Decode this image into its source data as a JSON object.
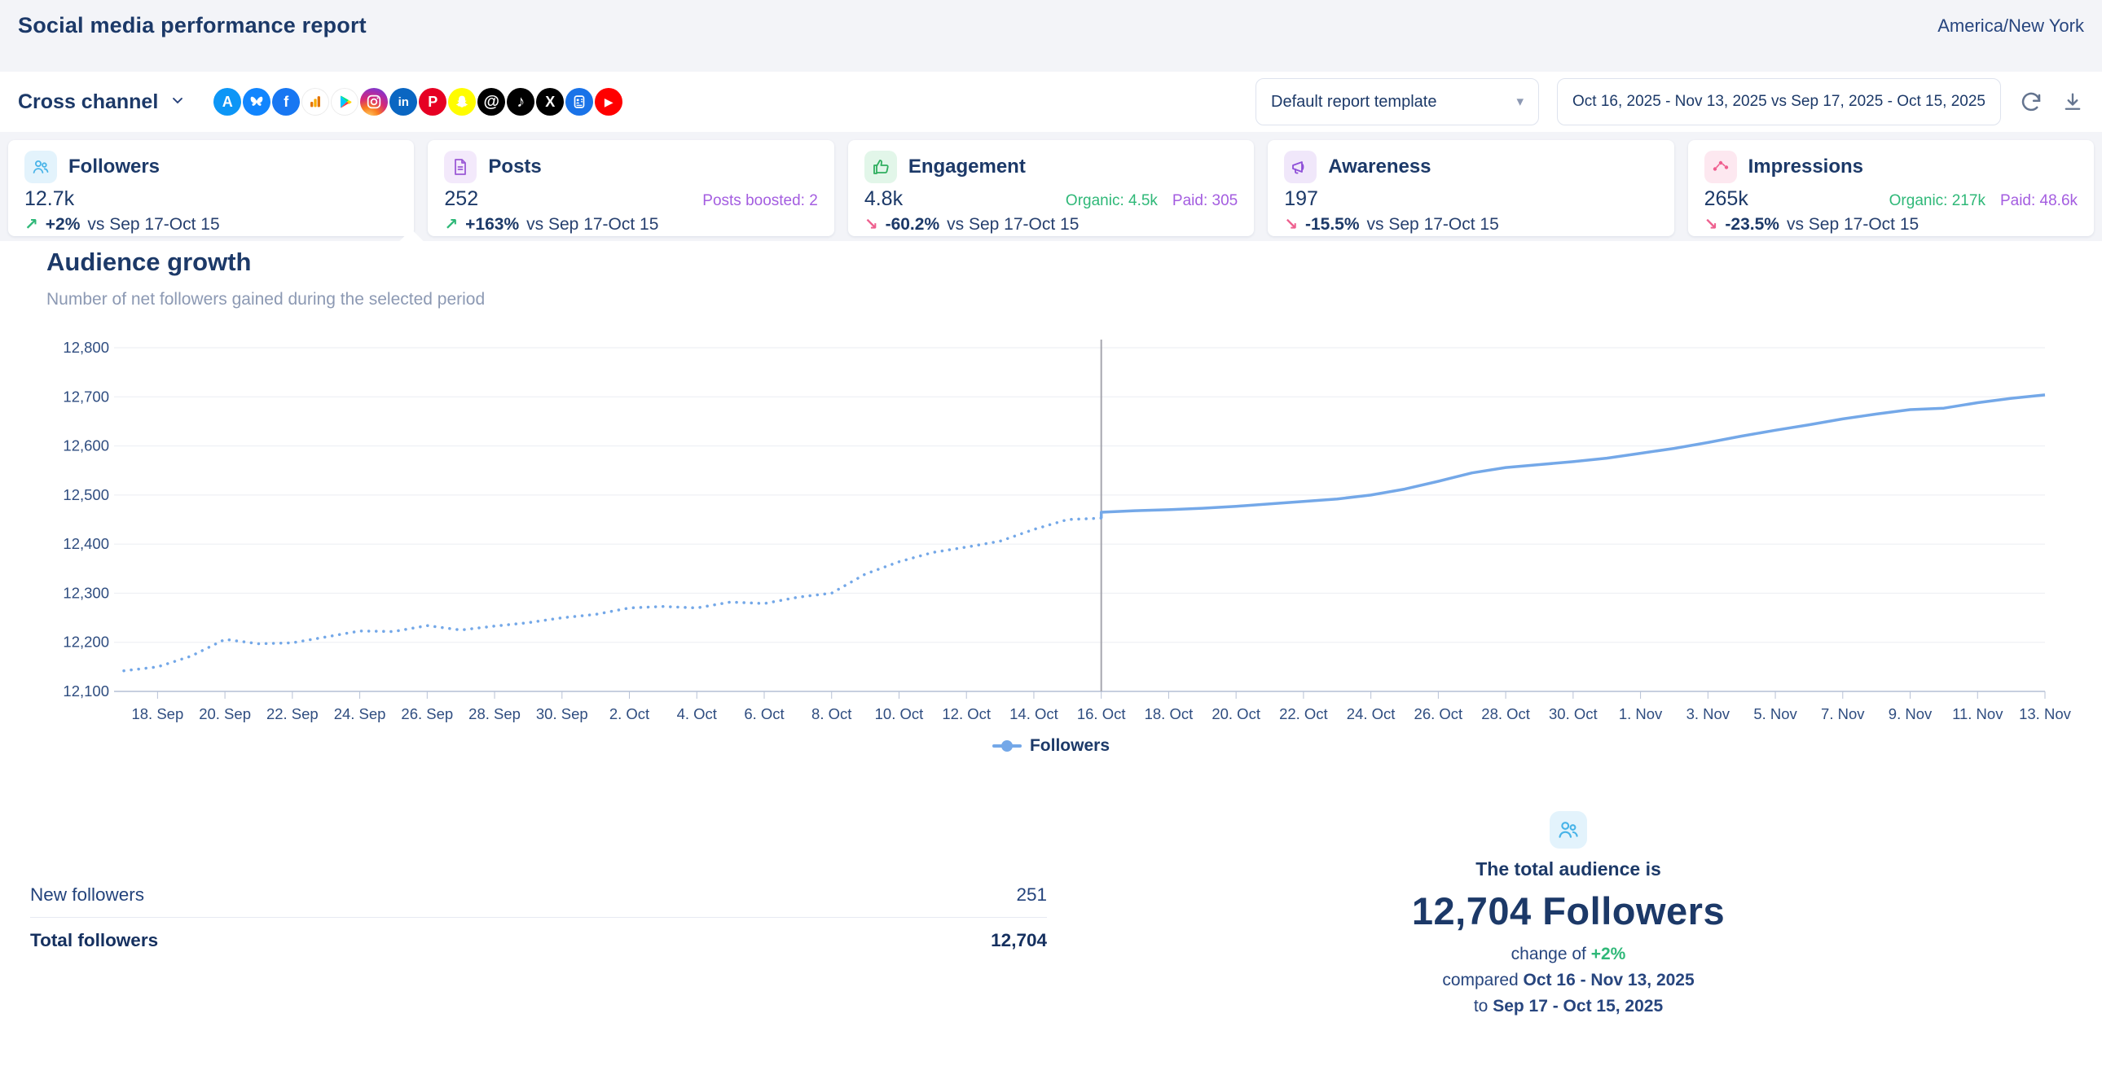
{
  "header": {
    "title": "Social media performance report",
    "timezone": "America/New York"
  },
  "toolbar": {
    "channel_label": "Cross channel",
    "template_selector": {
      "value": "Default report template"
    },
    "date_range": {
      "label": "Oct 16, 2025 - Nov 13, 2025 vs Sep 17, 2025 - Oct 15, 2025"
    },
    "channels": [
      {
        "name": "app-store",
        "bg": "#0d96f6",
        "fg": "#ffffff",
        "glyph": "A"
      },
      {
        "name": "bluesky",
        "bg": "#1185fe",
        "fg": "#ffffff",
        "glyph": "svg"
      },
      {
        "name": "facebook",
        "bg": "#1877f2",
        "fg": "#ffffff",
        "glyph": "f"
      },
      {
        "name": "google-analytics",
        "bg": "#ffffff",
        "fg": "#e37400",
        "glyph": "svg"
      },
      {
        "name": "google-play",
        "bg": "#ffffff",
        "fg": "#00c4ff",
        "glyph": "svg"
      },
      {
        "name": "instagram",
        "bg": "gradient",
        "fg": "#ffffff",
        "glyph": "svg"
      },
      {
        "name": "linkedin",
        "bg": "#0a66c2",
        "fg": "#ffffff",
        "glyph": "in"
      },
      {
        "name": "pinterest",
        "bg": "#e60023",
        "fg": "#ffffff",
        "glyph": "P"
      },
      {
        "name": "snapchat",
        "bg": "#fffc00",
        "fg": "#ffffff",
        "glyph": "svg"
      },
      {
        "name": "threads",
        "bg": "#000000",
        "fg": "#ffffff",
        "glyph": "@"
      },
      {
        "name": "tiktok",
        "bg": "#010101",
        "fg": "#ffffff",
        "glyph": "♪"
      },
      {
        "name": "x",
        "bg": "#000000",
        "fg": "#ffffff",
        "glyph": "X"
      },
      {
        "name": "google-business",
        "bg": "#1a73e8",
        "fg": "#ffffff",
        "glyph": "svg"
      },
      {
        "name": "youtube",
        "bg": "#ff0000",
        "fg": "#ffffff",
        "glyph": "▶"
      }
    ]
  },
  "kpis": [
    {
      "id": "followers",
      "title": "Followers",
      "value": "12.7k",
      "icon_bg": "#e3f3fc",
      "icon_color": "#49b4e8",
      "extras": [],
      "trend": {
        "direction": "up",
        "value": "+2%",
        "vs": "vs Sep 17-Oct 15"
      }
    },
    {
      "id": "posts",
      "title": "Posts",
      "value": "252",
      "icon_bg": "#f3e9fb",
      "icon_color": "#9b59d6",
      "extras": [
        {
          "label": "Posts boosted: 2",
          "color": "#a45de0"
        }
      ],
      "trend": {
        "direction": "up",
        "value": "+163%",
        "vs": "vs Sep 17-Oct 15"
      }
    },
    {
      "id": "engagement",
      "title": "Engagement",
      "value": "4.8k",
      "icon_bg": "#e2f6e9",
      "icon_color": "#2fae5f",
      "extras": [
        {
          "label": "Organic: 4.5k",
          "color": "#2fb878"
        },
        {
          "label": "Paid: 305",
          "color": "#a45de0"
        }
      ],
      "trend": {
        "direction": "down",
        "value": "-60.2%",
        "vs": "vs Sep 17-Oct 15"
      }
    },
    {
      "id": "awareness",
      "title": "Awareness",
      "value": "197",
      "icon_bg": "#f0e7fa",
      "icon_color": "#8e4fd8",
      "extras": [],
      "trend": {
        "direction": "down",
        "value": "-15.5%",
        "vs": "vs Sep 17-Oct 15"
      }
    },
    {
      "id": "impressions",
      "title": "Impressions",
      "value": "265k",
      "icon_bg": "#fde8f0",
      "icon_color": "#ef5d8e",
      "extras": [
        {
          "label": "Organic: 217k",
          "color": "#2fb878"
        },
        {
          "label": "Paid: 48.6k",
          "color": "#a45de0"
        }
      ],
      "trend": {
        "direction": "down",
        "value": "-23.5%",
        "vs": "vs Sep 17-Oct 15"
      }
    }
  ],
  "section": {
    "title": "Audience growth",
    "subtitle": "Number of net followers gained during the selected period"
  },
  "chart_data": {
    "type": "line",
    "title": "Audience growth",
    "xlabel": "",
    "ylabel": "",
    "ylim": [
      12100,
      12800
    ],
    "grid": true,
    "y_ticks": [
      12100,
      12200,
      12300,
      12400,
      12500,
      12600,
      12700,
      12800
    ],
    "y_tick_labels": [
      "12,100",
      "12,200",
      "12,300",
      "12,400",
      "12,500",
      "12,600",
      "12,700",
      "12,800"
    ],
    "x_tick_labels": [
      "18. Sep",
      "20. Sep",
      "22. Sep",
      "24. Sep",
      "26. Sep",
      "28. Sep",
      "30. Sep",
      "2. Oct",
      "4. Oct",
      "6. Oct",
      "8. Oct",
      "10. Oct",
      "12. Oct",
      "14. Oct",
      "16. Oct",
      "18. Oct",
      "20. Oct",
      "22. Oct",
      "24. Oct",
      "26. Oct",
      "28. Oct",
      "30. Oct",
      "1. Nov",
      "3. Nov",
      "5. Nov",
      "7. Nov",
      "9. Nov",
      "11. Nov",
      "13. Nov"
    ],
    "x_total_points": 58,
    "divider_index": 29,
    "divider_x_label": "16. Oct",
    "legend_position": "bottom",
    "legend": [
      {
        "label": "Followers",
        "color": "#74a8e8"
      }
    ],
    "series": [
      {
        "name": "Followers (previous period Sep 17 - Oct 15)",
        "style": "dotted",
        "start_index": 0,
        "values": [
          12142,
          12150,
          12172,
          12206,
          12197,
          12199,
          12211,
          12223,
          12222,
          12234,
          12225,
          12233,
          12240,
          12250,
          12257,
          12270,
          12273,
          12270,
          12282,
          12279,
          12292,
          12300,
          12339,
          12364,
          12383,
          12394,
          12406,
          12430,
          12450,
          12453
        ]
      },
      {
        "name": "Followers",
        "style": "solid",
        "start_index": 29,
        "values": [
          12465,
          12468,
          12470,
          12473,
          12477,
          12482,
          12487,
          12492,
          12500,
          12512,
          12528,
          12545,
          12556,
          12562,
          12568,
          12575,
          12585,
          12595,
          12607,
          12620,
          12632,
          12643,
          12655,
          12665,
          12674,
          12677,
          12688,
          12697,
          12704
        ]
      }
    ]
  },
  "table": {
    "rows": [
      {
        "label": "New followers",
        "value": "251",
        "bold": false
      },
      {
        "label": "Total followers",
        "value": "12,704",
        "bold": true
      }
    ]
  },
  "summary": {
    "intro": "The total audience is",
    "headline": "12,704 Followers",
    "change_prefix": "change of",
    "change_value": "+2%",
    "compared_prefix": "compared",
    "period_current": "Oct 16 - Nov 13, 2025",
    "to_prefix": "to",
    "period_previous": "Sep 17 - Oct 15, 2025"
  },
  "colors": {
    "navy": "#1c3968",
    "muted": "#8c99b3",
    "positive": "#2fb878",
    "negative": "#ee5f8e",
    "purple": "#a45de0",
    "line_blue": "#74a8e8",
    "page_bg": "#f3f4f8",
    "panel_bg": "#ffffff"
  }
}
